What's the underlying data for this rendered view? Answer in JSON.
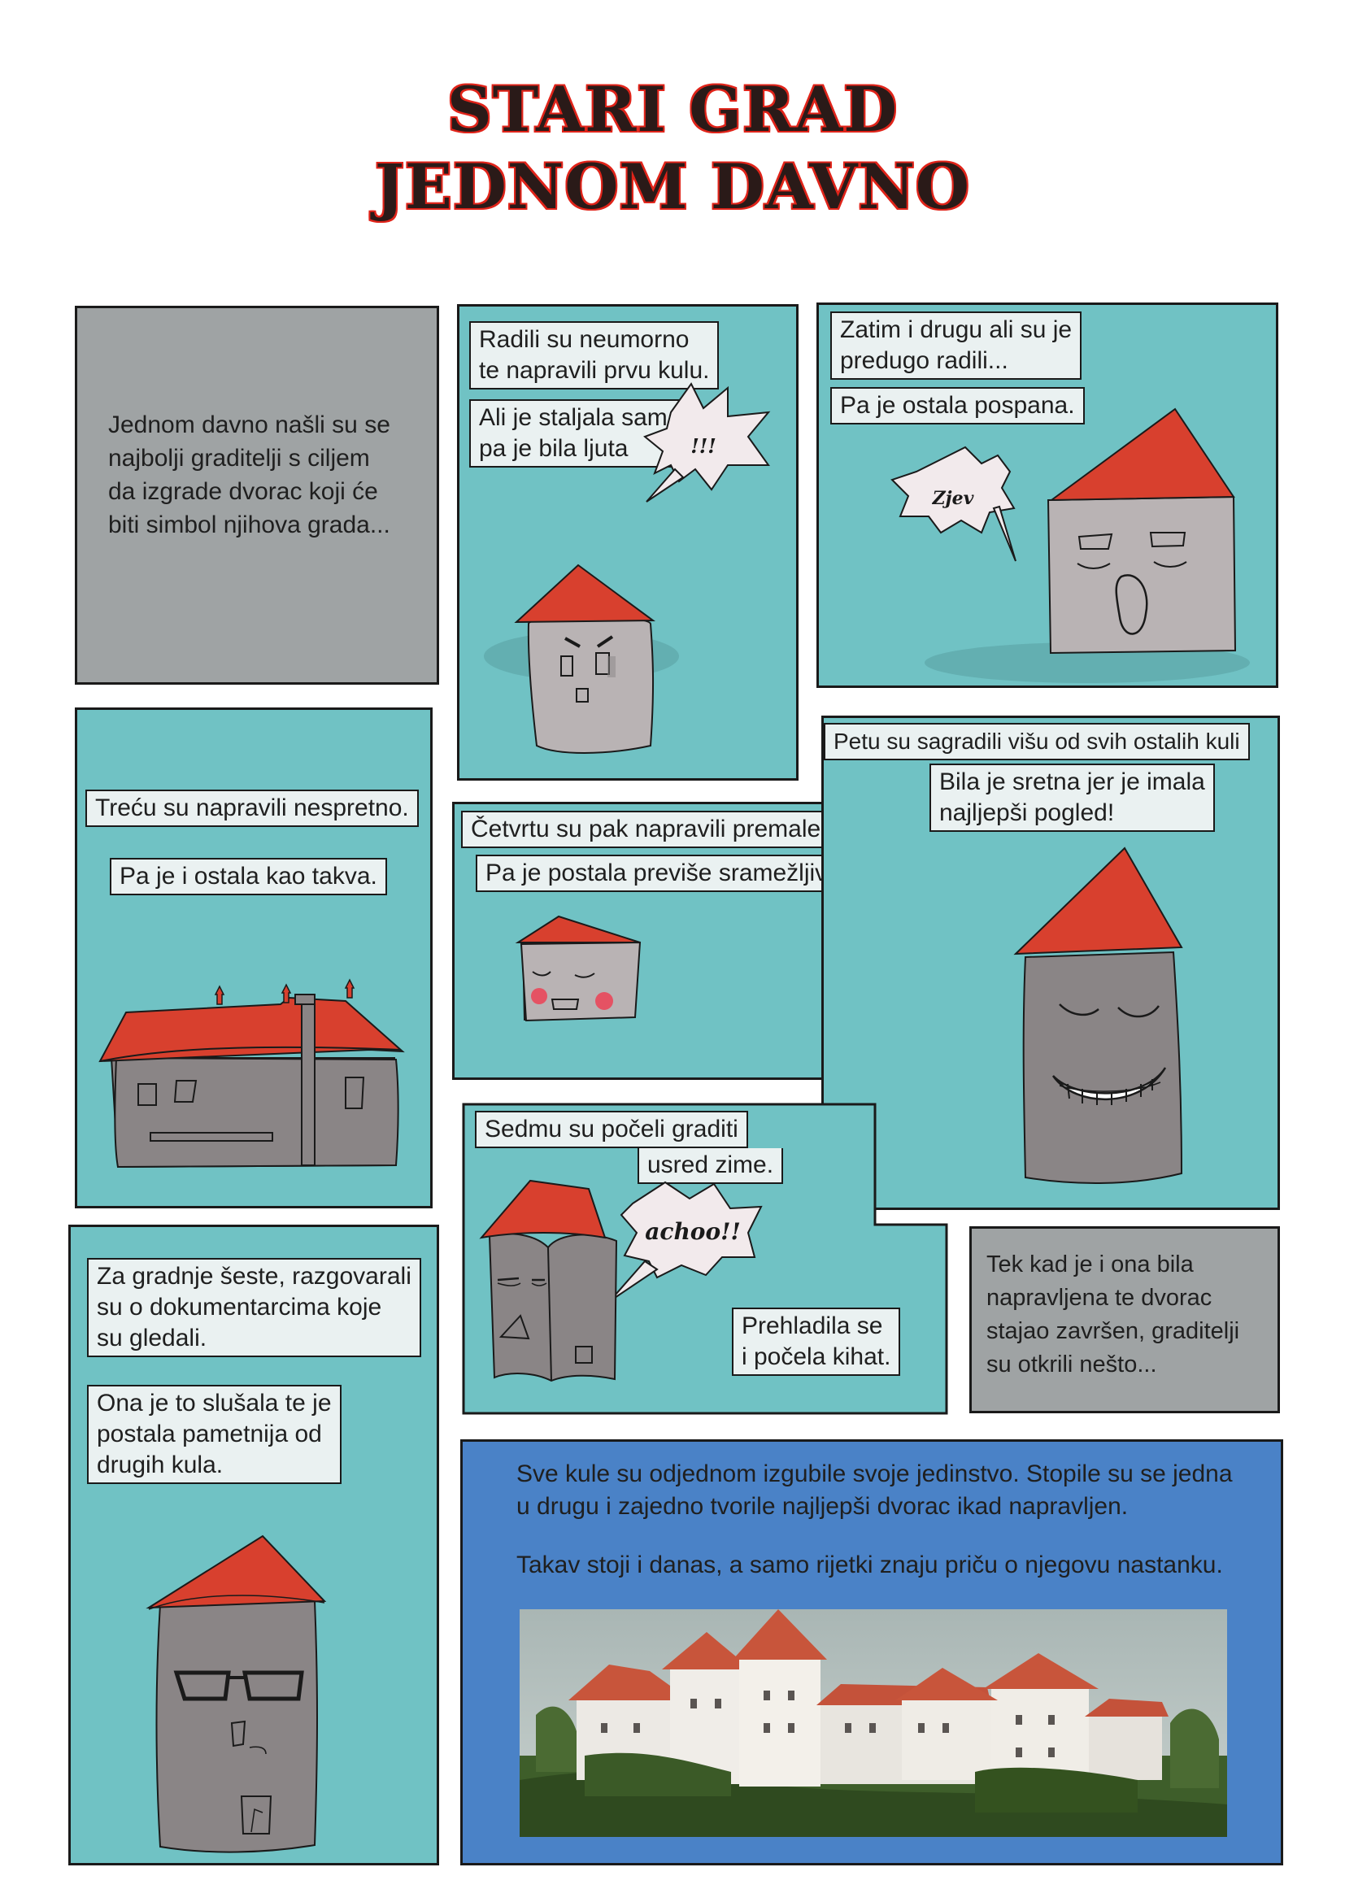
{
  "title": {
    "line1": "STARI GRAD",
    "line2": "JEDNOM DAVNO"
  },
  "panel_intro": {
    "text": [
      "Jednom davno našli su se",
      "najbolji graditelji s ciljem",
      "da izgrade dvorac koji će",
      "biti simbol njihova grada..."
    ]
  },
  "panel_first": {
    "caption1": [
      "Radili su neumorno",
      "te napravili prvu kulu."
    ],
    "caption2": [
      "Ali je staljala sama",
      "pa je bila ljuta"
    ],
    "bubble": "!!!"
  },
  "panel_second": {
    "caption1": [
      "Zatim i drugu ali su je",
      "predugo radili..."
    ],
    "caption2": "Pa je ostala pospana.",
    "bubble": "Zjev"
  },
  "panel_third": {
    "caption1": "Treću su napravili nespretno.",
    "caption2": "Pa je i ostala kao takva."
  },
  "panel_fourth": {
    "caption1": "Četvrtu su pak napravili premalenu.",
    "caption2": "Pa je postala previše sramežljiva."
  },
  "panel_fifth": {
    "caption1": "Petu su sagradili višu od svih ostalih kuli",
    "caption2": [
      "Bila je sretna jer je imala",
      "najljepši pogled!"
    ]
  },
  "panel_sixth": {
    "caption1": [
      "Za gradnje šeste, razgovarali",
      "su o dokumentarcima koje",
      "su gledali."
    ],
    "caption2": [
      "Ona je to slušala te je",
      "postala pametnija od",
      "drugih kula."
    ]
  },
  "panel_seventh": {
    "caption1": [
      "Sedmu su počeli graditi",
      "usred zime."
    ],
    "caption2": [
      "Prehladila se",
      "i počela kihat."
    ],
    "bubble": "achoo!!"
  },
  "panel_ending": {
    "text": [
      "Tek kad je i ona bila",
      "napravljena te dvorac",
      "stajao završen, graditelji",
      "su otkrili nešto..."
    ]
  },
  "panel_final": {
    "text1": [
      "Sve kule su odjednom izgubile svoje jedinstvo. Stopile su se jedna",
      "u drugu i zajedno tvorile najljepši dvorac ikad napravljen."
    ],
    "text2": "Takav stoji i danas, a samo rijetki znaju priču o njegovu nastanku."
  },
  "colors": {
    "teal_panel": "#70c2c4",
    "gray_panel": "#9fa3a4",
    "blue_panel": "#4a82c7",
    "roof_red": "#d8402e",
    "tower_gray": "#b9b3b4",
    "title_red": "#e0241a"
  }
}
